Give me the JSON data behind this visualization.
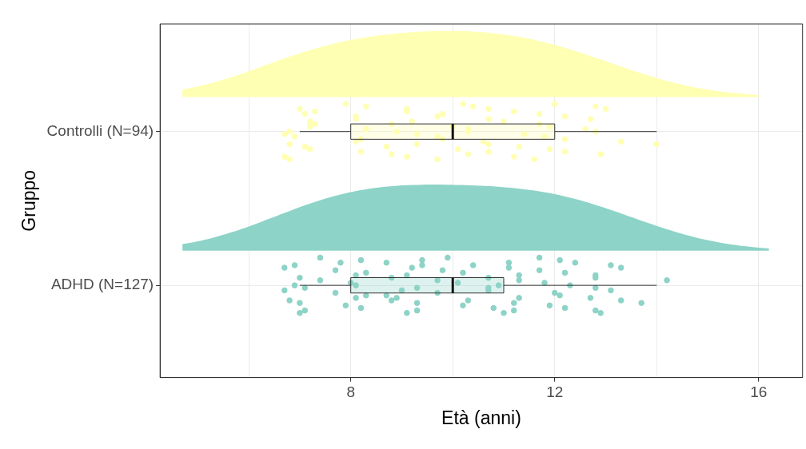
{
  "chart_data": {
    "type": "box",
    "orientation": "horizontal",
    "xlabel": "Età (anni)",
    "ylabel": "Gruppo",
    "categories": [
      "Controlli (N=94)",
      "ADHD (N=127)"
    ],
    "colors": [
      "#ffffb3",
      "#8dd3c7"
    ],
    "boxes": [
      {
        "low": 7,
        "q1": 8,
        "median": 10,
        "q3": 12,
        "high": 14
      },
      {
        "low": 7,
        "q1": 8,
        "median": 10,
        "q3": 11,
        "high": 14
      }
    ],
    "series": [
      {
        "type": "scatter",
        "color": "#ffffb3",
        "x": [
          "Controlli (N=94)",
          "Controlli (N=94)",
          "Controlli (N=94)",
          "Controlli (N=94)",
          "Controlli (N=94)",
          "Controlli (N=94)",
          "Controlli (N=94)",
          "Controlli (N=94)",
          "Controlli (N=94)",
          "Controlli (N=94)",
          "Controlli (N=94)",
          "Controlli (N=94)",
          "Controlli (N=94)",
          "Controlli (N=94)",
          "Controlli (N=94)",
          "Controlli (N=94)",
          "Controlli (N=94)",
          "Controlli (N=94)",
          "Controlli (N=94)",
          "Controlli (N=94)",
          "Controlli (N=94)",
          "Controlli (N=94)",
          "Controlli (N=94)",
          "Controlli (N=94)",
          "Controlli (N=94)",
          "Controlli (N=94)",
          "Controlli (N=94)",
          "Controlli (N=94)",
          "Controlli (N=94)",
          "Controlli (N=94)",
          "Controlli (N=94)",
          "Controlli (N=94)",
          "Controlli (N=94)",
          "Controlli (N=94)",
          "Controlli (N=94)",
          "Controlli (N=94)",
          "Controlli (N=94)",
          "Controlli (N=94)",
          "Controlli (N=94)",
          "Controlli (N=94)",
          "Controlli (N=94)",
          "Controlli (N=94)",
          "Controlli (N=94)",
          "Controlli (N=94)",
          "Controlli (N=94)",
          "Controlli (N=94)",
          "Controlli (N=94)",
          "Controlli (N=94)",
          "Controlli (N=94)",
          "Controlli (N=94)",
          "Controlli (N=94)",
          "Controlli (N=94)",
          "Controlli (N=94)",
          "Controlli (N=94)",
          "Controlli (N=94)",
          "Controlli (N=94)",
          "Controlli (N=94)",
          "Controlli (N=94)",
          "Controlli (N=94)",
          "Controlli (N=94)",
          "Controlli (N=94)",
          "Controlli (N=94)",
          "Controlli (N=94)",
          "Controlli (N=94)",
          "Controlli (N=94)",
          "Controlli (N=94)",
          "Controlli (N=94)",
          "Controlli (N=94)",
          "Controlli (N=94)",
          "Controlli (N=94)",
          "Controlli (N=94)",
          "Controlli (N=94)"
        ],
        "values": [
          6.8,
          7.0,
          6.8,
          7.2,
          6.7,
          6.7,
          7.3,
          7.1,
          7.3,
          6.8,
          6.9,
          7.1,
          7.2,
          7.2,
          7.9,
          8.2,
          8.1,
          8.2,
          8.3,
          8.3,
          8.1,
          8.1,
          8.8,
          8.9,
          9.1,
          9.3,
          9.2,
          9.1,
          9.3,
          9.1,
          8.7,
          8.8,
          9.7,
          9.7,
          9.8,
          10.1,
          10.0,
          10.2,
          9.8,
          9.7,
          10.7,
          10.3,
          10.4,
          10.6,
          10.7,
          10.3,
          10.3,
          10.7,
          10.7,
          11.0,
          11.2,
          11.4,
          11.2,
          11.3,
          11.7,
          11.6,
          11.8,
          11.7,
          11.9,
          11.9,
          12.0,
          12.2,
          12.2,
          12.2,
          12.6,
          12.8,
          13.3,
          12.7,
          12.9,
          12.8,
          13.0,
          14.0
        ]
      },
      {
        "type": "scatter",
        "color": "#8dd3c7",
        "x": [
          "ADHD (N=127)",
          "ADHD (N=127)",
          "ADHD (N=127)",
          "ADHD (N=127)",
          "ADHD (N=127)",
          "ADHD (N=127)",
          "ADHD (N=127)",
          "ADHD (N=127)",
          "ADHD (N=127)",
          "ADHD (N=127)",
          "ADHD (N=127)",
          "ADHD (N=127)",
          "ADHD (N=127)",
          "ADHD (N=127)",
          "ADHD (N=127)",
          "ADHD (N=127)",
          "ADHD (N=127)",
          "ADHD (N=127)",
          "ADHD (N=127)",
          "ADHD (N=127)",
          "ADHD (N=127)",
          "ADHD (N=127)",
          "ADHD (N=127)",
          "ADHD (N=127)",
          "ADHD (N=127)",
          "ADHD (N=127)",
          "ADHD (N=127)",
          "ADHD (N=127)",
          "ADHD (N=127)",
          "ADHD (N=127)",
          "ADHD (N=127)",
          "ADHD (N=127)",
          "ADHD (N=127)",
          "ADHD (N=127)",
          "ADHD (N=127)",
          "ADHD (N=127)",
          "ADHD (N=127)",
          "ADHD (N=127)",
          "ADHD (N=127)",
          "ADHD (N=127)",
          "ADHD (N=127)",
          "ADHD (N=127)",
          "ADHD (N=127)",
          "ADHD (N=127)",
          "ADHD (N=127)",
          "ADHD (N=127)",
          "ADHD (N=127)",
          "ADHD (N=127)",
          "ADHD (N=127)",
          "ADHD (N=127)",
          "ADHD (N=127)",
          "ADHD (N=127)",
          "ADHD (N=127)",
          "ADHD (N=127)",
          "ADHD (N=127)",
          "ADHD (N=127)",
          "ADHD (N=127)",
          "ADHD (N=127)",
          "ADHD (N=127)",
          "ADHD (N=127)",
          "ADHD (N=127)",
          "ADHD (N=127)",
          "ADHD (N=127)",
          "ADHD (N=127)",
          "ADHD (N=127)",
          "ADHD (N=127)",
          "ADHD (N=127)",
          "ADHD (N=127)",
          "ADHD (N=127)",
          "ADHD (N=127)",
          "ADHD (N=127)",
          "ADHD (N=127)",
          "ADHD (N=127)",
          "ADHD (N=127)",
          "ADHD (N=127)",
          "ADHD (N=127)",
          "ADHD (N=127)",
          "ADHD (N=127)",
          "ADHD (N=127)",
          "ADHD (N=127)",
          "ADHD (N=127)",
          "ADHD (N=127)",
          "ADHD (N=127)"
        ],
        "values": [
          6.9,
          7.8,
          8.1,
          8.1,
          7.1,
          7.1,
          6.9,
          6.8,
          7.0,
          7.0,
          6.7,
          6.7,
          7.0,
          7.4,
          7.4,
          7.7,
          7.7,
          7.9,
          8.0,
          8.2,
          8.3,
          8.3,
          8.2,
          8.1,
          8.7,
          8.9,
          9.1,
          9.3,
          9.3,
          9.4,
          8.8,
          8.8,
          9.1,
          9.0,
          9.2,
          9.3,
          9.7,
          9.9,
          9.7,
          9.8,
          10.2,
          10.1,
          9.4,
          8.7,
          10.2,
          10.8,
          10.9,
          11.1,
          11.3,
          11.3,
          11.2,
          10.7,
          10.4,
          10.3,
          10.7,
          11.0,
          10.7,
          11.1,
          11.2,
          11.3,
          11.7,
          12.0,
          11.7,
          11.9,
          11.8,
          12.1,
          12.1,
          12.2,
          12.2,
          12.3,
          12.4,
          12.7,
          12.8,
          12.8,
          12.8,
          13.1,
          13.3,
          12.8,
          12.9,
          13.1,
          13.3,
          13.7,
          14.2
        ]
      }
    ],
    "xlim": [
      4.26,
      16.86
    ],
    "xticks": [
      {
        "value": 6,
        "label": null
      },
      8,
      {
        "value": 10,
        "label": null
      },
      12,
      {
        "value": 14,
        "label": null
      },
      16
    ],
    "grid": true
  }
}
